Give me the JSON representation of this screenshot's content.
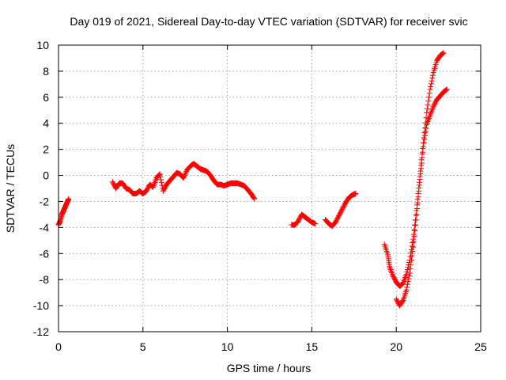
{
  "chart_data": {
    "type": "scatter",
    "title": "Day 019 of 2021, Sidereal Day-to-day VTEC variation (SDTVAR) for receiver svic",
    "xlabel": "GPS time / hours",
    "ylabel": "SDTVAR / TECUs",
    "xlim": [
      0,
      25
    ],
    "ylim": [
      -12,
      10
    ],
    "xticks": [
      0,
      5,
      10,
      15,
      20,
      25
    ],
    "yticks": [
      -12,
      -10,
      -8,
      -6,
      -4,
      -2,
      0,
      2,
      4,
      6,
      8,
      10
    ],
    "grid": true,
    "marker": "+",
    "marker_color": "#ff0000",
    "series": [
      {
        "points": [
          [
            0.0,
            -3.8
          ],
          [
            0.1,
            -3.5
          ],
          [
            0.2,
            -3.0
          ],
          [
            0.3,
            -2.7
          ],
          [
            0.4,
            -2.4
          ],
          [
            0.5,
            -2.1
          ],
          [
            0.6,
            -1.8
          ],
          [
            3.2,
            -0.5
          ],
          [
            3.4,
            -1.0
          ],
          [
            3.6,
            -0.6
          ],
          [
            3.8,
            -0.6
          ],
          [
            4.0,
            -1.0
          ],
          [
            4.2,
            -1.1
          ],
          [
            4.4,
            -1.4
          ],
          [
            4.6,
            -1.4
          ],
          [
            4.8,
            -1.2
          ],
          [
            5.0,
            -1.4
          ],
          [
            5.2,
            -1.2
          ],
          [
            5.4,
            -0.7
          ],
          [
            5.6,
            -0.9
          ],
          [
            5.8,
            -0.2
          ],
          [
            6.0,
            0.1
          ],
          [
            6.2,
            -1.2
          ],
          [
            6.4,
            -0.7
          ],
          [
            6.6,
            -0.4
          ],
          [
            6.8,
            -0.1
          ],
          [
            7.0,
            0.2
          ],
          [
            7.2,
            0.1
          ],
          [
            7.4,
            -0.2
          ],
          [
            7.6,
            0.4
          ],
          [
            7.8,
            0.7
          ],
          [
            8.0,
            0.9
          ],
          [
            8.2,
            0.7
          ],
          [
            8.4,
            0.5
          ],
          [
            8.6,
            0.4
          ],
          [
            8.8,
            0.3
          ],
          [
            9.0,
            0.0
          ],
          [
            9.2,
            -0.4
          ],
          [
            9.4,
            -0.7
          ],
          [
            9.6,
            -0.7
          ],
          [
            9.8,
            -0.8
          ],
          [
            10.0,
            -0.7
          ],
          [
            10.2,
            -0.6
          ],
          [
            10.4,
            -0.6
          ],
          [
            10.6,
            -0.6
          ],
          [
            10.8,
            -0.7
          ],
          [
            11.0,
            -0.8
          ],
          [
            11.2,
            -1.1
          ],
          [
            11.4,
            -1.4
          ],
          [
            11.6,
            -1.8
          ],
          [
            13.8,
            -3.8
          ],
          [
            14.0,
            -3.8
          ],
          [
            14.2,
            -3.5
          ],
          [
            14.4,
            -3.0
          ],
          [
            14.6,
            -3.2
          ],
          [
            14.8,
            -3.4
          ],
          [
            15.0,
            -3.6
          ],
          [
            15.2,
            -3.7
          ],
          [
            15.8,
            -3.4
          ],
          [
            16.0,
            -3.7
          ],
          [
            16.2,
            -3.9
          ],
          [
            16.4,
            -3.6
          ],
          [
            16.6,
            -3.1
          ],
          [
            16.8,
            -2.6
          ],
          [
            17.0,
            -2.1
          ],
          [
            17.2,
            -1.7
          ],
          [
            17.4,
            -1.5
          ],
          [
            17.6,
            -1.4
          ],
          [
            19.3,
            -5.3
          ],
          [
            19.5,
            -6.1
          ],
          [
            19.6,
            -7.0
          ],
          [
            19.8,
            -7.7
          ],
          [
            20.0,
            -8.2
          ],
          [
            20.2,
            -8.5
          ],
          [
            20.4,
            -8.3
          ],
          [
            20.6,
            -7.6
          ],
          [
            20.8,
            -6.5
          ],
          [
            21.0,
            -4.9
          ],
          [
            21.2,
            -2.7
          ],
          [
            21.4,
            -0.1
          ],
          [
            21.6,
            2.5
          ],
          [
            21.8,
            4.8
          ],
          [
            22.0,
            6.6
          ],
          [
            22.2,
            7.9
          ],
          [
            22.4,
            8.8
          ],
          [
            22.6,
            9.2
          ],
          [
            22.8,
            9.4
          ],
          [
            20.0,
            -9.5
          ],
          [
            20.2,
            -10.0
          ],
          [
            20.4,
            -9.6
          ],
          [
            20.6,
            -8.8
          ],
          [
            20.8,
            -7.5
          ],
          [
            21.0,
            -5.5
          ],
          [
            21.2,
            -3.0
          ],
          [
            21.4,
            -0.3
          ],
          [
            21.6,
            2.2
          ],
          [
            21.8,
            3.9
          ],
          [
            22.0,
            4.6
          ],
          [
            22.2,
            5.3
          ],
          [
            22.4,
            5.8
          ],
          [
            22.6,
            6.1
          ],
          [
            22.8,
            6.4
          ],
          [
            23.0,
            6.6
          ]
        ]
      }
    ]
  }
}
